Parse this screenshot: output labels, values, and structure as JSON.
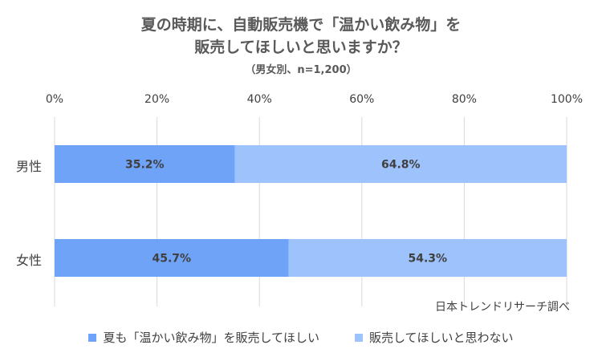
{
  "title_line1": "夏の時期に、自動販売機で「温かい飲み物」を",
  "title_line2": "販売してほしいと思いますか？",
  "subtitle": "（男女別、n=1,200）",
  "source": "日本トレンドリサーチ調べ",
  "colors": {
    "series1": "#6fa3f7",
    "series2": "#9ec2fb",
    "grid": "#d9d9d9",
    "text": "#404040"
  },
  "chart_data": {
    "type": "bar",
    "orientation": "horizontal",
    "stacked": "percent",
    "title": "夏の時期に、自動販売機で「温かい飲み物」を販売してほしいと思いますか？",
    "subtitle": "（男女別、n=1,200）",
    "categories": [
      "男性",
      "女性"
    ],
    "series": [
      {
        "name": "夏も「温かい飲み物」を販売してほしい",
        "values": [
          35.2,
          45.7
        ]
      },
      {
        "name": "販売してほしいと思わない",
        "values": [
          64.8,
          54.3
        ]
      }
    ],
    "data_labels": [
      [
        "35.2%",
        "45.7%"
      ],
      [
        "64.8%",
        "54.3%"
      ]
    ],
    "xlim": [
      0,
      100
    ],
    "x_ticks": [
      "0%",
      "20%",
      "40%",
      "60%",
      "80%",
      "100%"
    ],
    "grid": true,
    "legend_position": "bottom",
    "axis_position": "top"
  }
}
